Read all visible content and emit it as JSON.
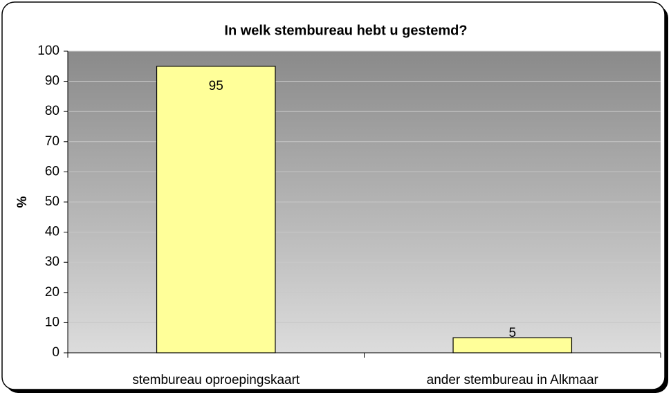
{
  "chart_data": {
    "type": "bar",
    "title": "In welk stembureau hebt u gestemd?",
    "y_label": "%",
    "categories": [
      "stembureau oproepingskaart",
      "ander stembureau in Alkmaar"
    ],
    "values": [
      95,
      5
    ],
    "color": "#ffff99",
    "ylim": [
      0,
      100
    ],
    "yticks": [
      0,
      10,
      20,
      30,
      40,
      50,
      60,
      70,
      80,
      90,
      100
    ],
    "grid": true
  }
}
